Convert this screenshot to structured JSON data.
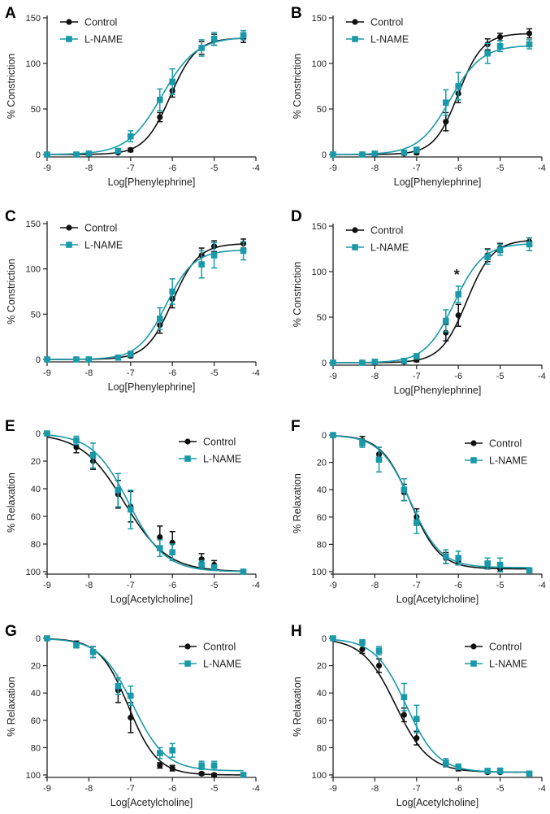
{
  "colors": {
    "control": "#111111",
    "lname": "#1a9aa8",
    "axis": "#222222"
  },
  "chart_data": [
    {
      "panel": "A",
      "type": "line",
      "xlabel": "Log[Phenylephrine]",
      "ylabel": "% Constriction",
      "xlim": [
        -9,
        -4
      ],
      "ylim": [
        0,
        150
      ],
      "y_inverted": false,
      "xticks": [
        -9,
        -8,
        -7,
        -6,
        -5,
        -4
      ],
      "yticks": [
        0,
        50,
        100,
        150
      ],
      "legend": "top-left",
      "significance": null,
      "series": [
        {
          "name": "Control",
          "marker": "circle",
          "x": [
            -9,
            -8.3,
            -8,
            -7.3,
            -7,
            -6.3,
            -6,
            -5.3,
            -5,
            -4.3
          ],
          "y": [
            0,
            0,
            0,
            2,
            5,
            41,
            70,
            117,
            126,
            128
          ],
          "err": [
            0,
            1,
            1,
            1,
            2,
            5,
            7,
            7,
            6,
            5
          ],
          "curve": {
            "bottom": 0,
            "top": 128,
            "ec50": -6.05,
            "hill": 1.4
          }
        },
        {
          "name": "L-NAME",
          "marker": "square",
          "x": [
            -9,
            -8.3,
            -8,
            -7.3,
            -7,
            -6.3,
            -6,
            -5.3,
            -5,
            -4.3
          ],
          "y": [
            0,
            0,
            1,
            4,
            20,
            60,
            80,
            117,
            127,
            131
          ],
          "err": [
            0,
            1,
            1,
            2,
            6,
            12,
            14,
            9,
            7,
            5
          ],
          "curve": {
            "bottom": 0,
            "top": 129,
            "ec50": -6.25,
            "hill": 1.05
          }
        }
      ]
    },
    {
      "panel": "B",
      "type": "line",
      "xlabel": "Log[Phenylephrine]",
      "ylabel": "% Constriction",
      "xlim": [
        -9,
        -4
      ],
      "ylim": [
        0,
        150
      ],
      "y_inverted": false,
      "xticks": [
        -9,
        -8,
        -7,
        -6,
        -5,
        -4
      ],
      "yticks": [
        0,
        50,
        100,
        150
      ],
      "legend": "top-left",
      "significance": null,
      "series": [
        {
          "name": "Control",
          "marker": "circle",
          "x": [
            -9,
            -8.3,
            -8,
            -7.3,
            -7,
            -6.3,
            -6,
            -5.3,
            -5,
            -4.3
          ],
          "y": [
            0,
            0,
            0,
            1,
            2,
            36,
            67,
            121,
            129,
            133
          ],
          "err": [
            0,
            1,
            1,
            1,
            2,
            10,
            10,
            6,
            4,
            5
          ],
          "curve": {
            "bottom": 0,
            "top": 133,
            "ec50": -6.0,
            "hill": 1.5
          }
        },
        {
          "name": "L-NAME",
          "marker": "square",
          "x": [
            -9,
            -8.3,
            -8,
            -7.3,
            -7,
            -6.3,
            -6,
            -5.3,
            -5,
            -4.3
          ],
          "y": [
            0,
            0,
            1,
            2,
            5,
            57,
            75,
            111,
            119,
            121
          ],
          "err": [
            0,
            1,
            1,
            2,
            3,
            14,
            15,
            11,
            6,
            5
          ],
          "curve": {
            "bottom": 0,
            "top": 120,
            "ec50": -6.2,
            "hill": 1.15
          }
        }
      ]
    },
    {
      "panel": "C",
      "type": "line",
      "xlabel": "Log[Phenylephrine]",
      "ylabel": "% Constriction",
      "xlim": [
        -9,
        -4
      ],
      "ylim": [
        0,
        150
      ],
      "y_inverted": false,
      "xticks": [
        -9,
        -8,
        -7,
        -6,
        -5,
        -4
      ],
      "yticks": [
        0,
        50,
        100,
        150
      ],
      "legend": "top-left",
      "significance": null,
      "series": [
        {
          "name": "Control",
          "marker": "circle",
          "x": [
            -9,
            -8.3,
            -8,
            -7.3,
            -7,
            -6.3,
            -6,
            -5.3,
            -5,
            -4.3
          ],
          "y": [
            0,
            0,
            0,
            2,
            4,
            38,
            67,
            115,
            125,
            128
          ],
          "err": [
            0,
            1,
            1,
            1,
            2,
            9,
            10,
            8,
            6,
            5
          ],
          "curve": {
            "bottom": 0,
            "top": 128,
            "ec50": -6.0,
            "hill": 1.4
          }
        },
        {
          "name": "L-NAME",
          "marker": "square",
          "x": [
            -9,
            -8.3,
            -8,
            -7.3,
            -7,
            -6.3,
            -6,
            -5.3,
            -5,
            -4.3
          ],
          "y": [
            0,
            0,
            0,
            2,
            6,
            45,
            75,
            105,
            115,
            120
          ],
          "err": [
            0,
            1,
            1,
            2,
            3,
            12,
            14,
            15,
            14,
            10
          ],
          "curve": {
            "bottom": 0,
            "top": 121,
            "ec50": -6.15,
            "hill": 1.3
          }
        }
      ]
    },
    {
      "panel": "D",
      "type": "line",
      "xlabel": "Log[Phenylephrine]",
      "ylabel": "% Constriction",
      "xlim": [
        -9,
        -4
      ],
      "ylim": [
        0,
        150
      ],
      "y_inverted": false,
      "xticks": [
        -9,
        -8,
        -7,
        -6,
        -5,
        -4
      ],
      "yticks": [
        0,
        50,
        100,
        150
      ],
      "legend": "top-left",
      "significance": {
        "label": "*",
        "x": -6.0,
        "y": 102
      },
      "series": [
        {
          "name": "Control",
          "marker": "circle",
          "x": [
            -9,
            -8.3,
            -8,
            -7.3,
            -7,
            -6.3,
            -6,
            -5.3,
            -5,
            -4.3
          ],
          "y": [
            0,
            0,
            0,
            1,
            3,
            33,
            52,
            118,
            126,
            133
          ],
          "err": [
            0,
            1,
            1,
            1,
            2,
            9,
            12,
            7,
            5,
            4
          ],
          "curve": {
            "bottom": 0,
            "top": 135,
            "ec50": -5.8,
            "hill": 1.4
          }
        },
        {
          "name": "L-NAME",
          "marker": "square",
          "x": [
            -9,
            -8.3,
            -8,
            -7.3,
            -7,
            -6.3,
            -6,
            -5.3,
            -5,
            -4.3
          ],
          "y": [
            0,
            0,
            1,
            2,
            7,
            46,
            75,
            116,
            124,
            130
          ],
          "err": [
            0,
            1,
            1,
            2,
            3,
            12,
            9,
            8,
            6,
            7
          ],
          "curve": {
            "bottom": 0,
            "top": 131,
            "ec50": -6.1,
            "hill": 1.25
          }
        }
      ]
    },
    {
      "panel": "E",
      "type": "line",
      "xlabel": "Log[Acetylcholine]",
      "ylabel": "% Relaxation",
      "xlim": [
        -9,
        -4
      ],
      "ylim": [
        0,
        100
      ],
      "y_inverted": true,
      "xticks": [
        -9,
        -8,
        -7,
        -6,
        -5,
        -4
      ],
      "yticks": [
        0,
        20,
        40,
        60,
        80,
        100
      ],
      "legend": "top-right",
      "significance": null,
      "series": [
        {
          "name": "Control",
          "marker": "circle",
          "x": [
            -9,
            -8.3,
            -7.9,
            -7.3,
            -7,
            -6.3,
            -6,
            -5.3,
            -5,
            -4.3
          ],
          "y": [
            0,
            10,
            20,
            44,
            53,
            75,
            79,
            91,
            95,
            100
          ],
          "err": [
            0,
            4,
            6,
            10,
            11,
            8,
            8,
            4,
            3,
            0
          ],
          "curve": {
            "bottom": 0,
            "top": 100,
            "ec50": -7.15,
            "hill": 0.85
          }
        },
        {
          "name": "L-NAME",
          "marker": "square",
          "x": [
            -9,
            -8.3,
            -7.9,
            -7.3,
            -7,
            -6.3,
            -6,
            -5.3,
            -5,
            -4.3
          ],
          "y": [
            0,
            5,
            16,
            41,
            55,
            83,
            86,
            95,
            97,
            100
          ],
          "err": [
            0,
            3,
            9,
            12,
            14,
            6,
            6,
            3,
            2,
            0
          ],
          "curve": {
            "bottom": 0,
            "top": 100,
            "ec50": -7.05,
            "hill": 1.0
          }
        }
      ]
    },
    {
      "panel": "F",
      "type": "line",
      "xlabel": "Log[Acetylcholine]",
      "ylabel": "% Relaxation",
      "xlim": [
        -9,
        -4
      ],
      "ylim": [
        0,
        100
      ],
      "y_inverted": true,
      "xticks": [
        -9,
        -8,
        -7,
        -6,
        -5,
        -4
      ],
      "yticks": [
        0,
        20,
        40,
        60,
        80,
        100
      ],
      "legend": "top-right",
      "significance": null,
      "series": [
        {
          "name": "Control",
          "marker": "circle",
          "x": [
            -9,
            -8.3,
            -7.9,
            -7.3,
            -7,
            -6.3,
            -6,
            -5.3,
            -5,
            -4.3
          ],
          "y": [
            0,
            4,
            14,
            42,
            60,
            90,
            92,
            96,
            98,
            99
          ],
          "err": [
            0,
            3,
            5,
            6,
            6,
            4,
            3,
            2,
            2,
            1
          ],
          "curve": {
            "bottom": 0,
            "top": 98,
            "ec50": -7.15,
            "hill": 1.25
          }
        },
        {
          "name": "L-NAME",
          "marker": "square",
          "x": [
            -9,
            -8.3,
            -7.9,
            -7.3,
            -7,
            -6.3,
            -6,
            -5.3,
            -5,
            -4.3
          ],
          "y": [
            0,
            6,
            18,
            40,
            64,
            89,
            90,
            94,
            95,
            99
          ],
          "err": [
            0,
            3,
            9,
            8,
            8,
            5,
            5,
            4,
            5,
            1
          ],
          "curve": {
            "bottom": 0,
            "top": 97,
            "ec50": -7.15,
            "hill": 1.2
          }
        }
      ]
    },
    {
      "panel": "G",
      "type": "line",
      "xlabel": "Log[Acetylcholine]",
      "ylabel": "% Relaxation",
      "xlim": [
        -9,
        -4
      ],
      "ylim": [
        0,
        100
      ],
      "y_inverted": true,
      "xticks": [
        -9,
        -8,
        -7,
        -6,
        -5,
        -4
      ],
      "yticks": [
        0,
        20,
        40,
        60,
        80,
        100
      ],
      "legend": "top-right",
      "significance": null,
      "series": [
        {
          "name": "Control",
          "marker": "circle",
          "x": [
            -9,
            -8.3,
            -7.9,
            -7.3,
            -7,
            -6.3,
            -6,
            -5.3,
            -5,
            -4.3
          ],
          "y": [
            0,
            4,
            10,
            38,
            58,
            93,
            95,
            99,
            100,
            100
          ],
          "err": [
            0,
            2,
            4,
            9,
            11,
            2,
            2,
            1,
            1,
            0
          ],
          "curve": {
            "bottom": 0,
            "top": 100,
            "ec50": -7.05,
            "hill": 1.25
          }
        },
        {
          "name": "L-NAME",
          "marker": "square",
          "x": [
            -9,
            -8.3,
            -7.9,
            -7.3,
            -7,
            -6.3,
            -6,
            -5.3,
            -5,
            -4.3
          ],
          "y": [
            0,
            5,
            10,
            35,
            42,
            84,
            82,
            93,
            93,
            100
          ],
          "err": [
            0,
            2,
            4,
            6,
            7,
            4,
            5,
            3,
            3,
            0
          ],
          "curve": {
            "bottom": 0,
            "top": 97,
            "ec50": -6.95,
            "hill": 1.1
          }
        }
      ]
    },
    {
      "panel": "H",
      "type": "line",
      "xlabel": "Log[Acetylcholine]",
      "ylabel": "% Relaxation",
      "xlim": [
        -9,
        -4
      ],
      "ylim": [
        0,
        100
      ],
      "y_inverted": true,
      "xticks": [
        -9,
        -8,
        -7,
        -6,
        -5,
        -4
      ],
      "yticks": [
        0,
        20,
        40,
        60,
        80,
        100
      ],
      "legend": "top-right",
      "significance": null,
      "series": [
        {
          "name": "Control",
          "marker": "circle",
          "x": [
            -9,
            -8.3,
            -7.9,
            -7.3,
            -7,
            -6.3,
            -6,
            -5.3,
            -5,
            -4.3
          ],
          "y": [
            0,
            8,
            20,
            56,
            73,
            92,
            95,
            98,
            98,
            99
          ],
          "err": [
            0,
            3,
            5,
            5,
            5,
            2,
            2,
            1,
            1,
            1
          ],
          "curve": {
            "bottom": 0,
            "top": 98,
            "ec50": -7.5,
            "hill": 1.1
          }
        },
        {
          "name": "L-NAME",
          "marker": "square",
          "x": [
            -9,
            -8.3,
            -7.9,
            -7.3,
            -7,
            -6.3,
            -6,
            -5.3,
            -5,
            -4.3
          ],
          "y": [
            0,
            3,
            9,
            43,
            59,
            91,
            94,
            97,
            97,
            99
          ],
          "err": [
            0,
            2,
            3,
            10,
            10,
            3,
            2,
            1,
            2,
            1
          ],
          "curve": {
            "bottom": 0,
            "top": 98,
            "ec50": -7.25,
            "hill": 1.15
          }
        }
      ]
    }
  ]
}
